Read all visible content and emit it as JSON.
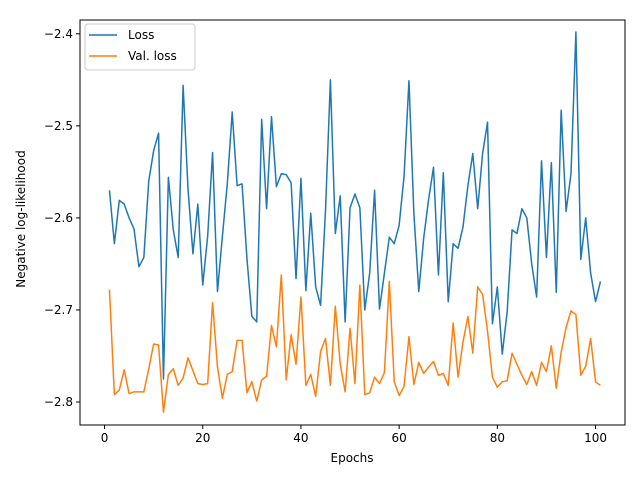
{
  "chart_data": {
    "type": "line",
    "xlabel": "Epochs",
    "ylabel": "Negative log-likelihood",
    "xlim": [
      -5,
      106
    ],
    "ylim": [
      -2.825,
      -2.385
    ],
    "x_ticks": [
      0,
      20,
      40,
      60,
      80,
      100
    ],
    "y_ticks": [
      -2.8,
      -2.7,
      -2.6,
      -2.5,
      -2.4
    ],
    "x_tick_labels": [
      "0",
      "20",
      "40",
      "60",
      "80",
      "100"
    ],
    "y_tick_labels": [
      "−2.8",
      "−2.7",
      "−2.6",
      "−2.5",
      "−2.4"
    ],
    "grid": false,
    "legend_position": "top-left",
    "x": [
      1,
      2,
      3,
      4,
      5,
      6,
      7,
      8,
      9,
      10,
      11,
      12,
      13,
      14,
      15,
      16,
      17,
      18,
      19,
      20,
      21,
      22,
      23,
      24,
      25,
      26,
      27,
      28,
      29,
      30,
      31,
      32,
      33,
      34,
      35,
      36,
      37,
      38,
      39,
      40,
      41,
      42,
      43,
      44,
      45,
      46,
      47,
      48,
      49,
      50,
      51,
      52,
      53,
      54,
      55,
      56,
      57,
      58,
      59,
      60,
      61,
      62,
      63,
      64,
      65,
      66,
      67,
      68,
      69,
      70,
      71,
      72,
      73,
      74,
      75,
      76,
      77,
      78,
      79,
      80,
      81,
      82,
      83,
      84,
      85,
      86,
      87,
      88,
      89,
      90,
      91,
      92,
      93,
      94,
      95,
      96,
      97,
      98,
      99,
      100,
      101
    ],
    "series": [
      {
        "name": "Loss",
        "color": "#1f77b4",
        "values": [
          -2.57,
          -2.628,
          -2.581,
          -2.585,
          -2.6,
          -2.612,
          -2.653,
          -2.643,
          -2.56,
          -2.527,
          -2.508,
          -2.775,
          -2.556,
          -2.613,
          -2.643,
          -2.456,
          -2.569,
          -2.639,
          -2.585,
          -2.673,
          -2.62,
          -2.529,
          -2.68,
          -2.62,
          -2.563,
          -2.485,
          -2.565,
          -2.563,
          -2.644,
          -2.707,
          -2.713,
          -2.493,
          -2.59,
          -2.49,
          -2.566,
          -2.552,
          -2.553,
          -2.562,
          -2.666,
          -2.557,
          -2.679,
          -2.595,
          -2.675,
          -2.695,
          -2.592,
          -2.45,
          -2.617,
          -2.576,
          -2.713,
          -2.589,
          -2.574,
          -2.589,
          -2.7,
          -2.66,
          -2.57,
          -2.699,
          -2.66,
          -2.621,
          -2.628,
          -2.608,
          -2.555,
          -2.451,
          -2.595,
          -2.68,
          -2.622,
          -2.58,
          -2.545,
          -2.662,
          -2.551,
          -2.691,
          -2.628,
          -2.633,
          -2.61,
          -2.565,
          -2.53,
          -2.59,
          -2.53,
          -2.496,
          -2.715,
          -2.675,
          -2.748,
          -2.702,
          -2.613,
          -2.617,
          -2.59,
          -2.6,
          -2.65,
          -2.686,
          -2.538,
          -2.643,
          -2.54,
          -2.681,
          -2.483,
          -2.593,
          -2.552,
          -2.398,
          -2.645,
          -2.6,
          -2.66,
          -2.691,
          -2.669
        ]
      },
      {
        "name": "Val. loss",
        "color": "#ff7f0e",
        "values": [
          -2.678,
          -2.792,
          -2.787,
          -2.765,
          -2.791,
          -2.789,
          -2.789,
          -2.789,
          -2.764,
          -2.737,
          -2.738,
          -2.811,
          -2.77,
          -2.764,
          -2.782,
          -2.774,
          -2.752,
          -2.766,
          -2.78,
          -2.781,
          -2.78,
          -2.692,
          -2.762,
          -2.796,
          -2.77,
          -2.767,
          -2.733,
          -2.733,
          -2.79,
          -2.778,
          -2.799,
          -2.776,
          -2.772,
          -2.717,
          -2.74,
          -2.662,
          -2.776,
          -2.727,
          -2.759,
          -2.686,
          -2.782,
          -2.77,
          -2.794,
          -2.745,
          -2.731,
          -2.782,
          -2.696,
          -2.759,
          -2.789,
          -2.72,
          -2.78,
          -2.673,
          -2.792,
          -2.79,
          -2.773,
          -2.78,
          -2.768,
          -2.669,
          -2.778,
          -2.793,
          -2.783,
          -2.729,
          -2.781,
          -2.757,
          -2.769,
          -2.762,
          -2.756,
          -2.771,
          -2.769,
          -2.782,
          -2.714,
          -2.773,
          -2.735,
          -2.707,
          -2.747,
          -2.675,
          -2.683,
          -2.723,
          -2.773,
          -2.784,
          -2.778,
          -2.777,
          -2.747,
          -2.759,
          -2.771,
          -2.781,
          -2.767,
          -2.782,
          -2.757,
          -2.767,
          -2.739,
          -2.785,
          -2.746,
          -2.719,
          -2.701,
          -2.705,
          -2.771,
          -2.761,
          -2.731,
          -2.778,
          -2.782
        ]
      }
    ]
  }
}
